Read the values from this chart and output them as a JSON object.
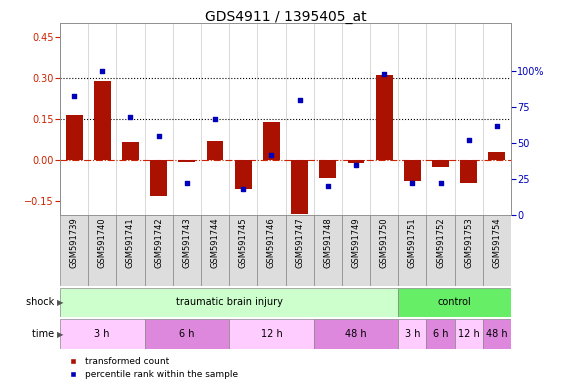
{
  "title": "GDS4911 / 1395405_at",
  "samples": [
    "GSM591739",
    "GSM591740",
    "GSM591741",
    "GSM591742",
    "GSM591743",
    "GSM591744",
    "GSM591745",
    "GSM591746",
    "GSM591747",
    "GSM591748",
    "GSM591749",
    "GSM591750",
    "GSM591751",
    "GSM591752",
    "GSM591753",
    "GSM591754"
  ],
  "red_values": [
    0.165,
    0.29,
    0.065,
    -0.13,
    -0.005,
    0.07,
    -0.105,
    0.14,
    -0.195,
    -0.065,
    -0.01,
    0.31,
    -0.075,
    -0.025,
    -0.085,
    0.03
  ],
  "blue_values": [
    83,
    100,
    68,
    55,
    22,
    67,
    18,
    42,
    80,
    20,
    35,
    98,
    22,
    22,
    52,
    62
  ],
  "ylim_left": [
    -0.2,
    0.5
  ],
  "ylim_right": [
    0,
    133.33
  ],
  "yticks_left": [
    -0.15,
    0.0,
    0.15,
    0.3,
    0.45
  ],
  "yticks_right": [
    0,
    25,
    50,
    75,
    100
  ],
  "hlines": [
    0.15,
    0.3
  ],
  "shock_groups": [
    {
      "label": "traumatic brain injury",
      "start": 0,
      "end": 12,
      "color": "#ccffcc"
    },
    {
      "label": "control",
      "start": 12,
      "end": 16,
      "color": "#66ee66"
    }
  ],
  "time_groups": [
    {
      "label": "3 h",
      "start": 0,
      "end": 3,
      "color": "#ffccff"
    },
    {
      "label": "6 h",
      "start": 3,
      "end": 6,
      "color": "#dd88dd"
    },
    {
      "label": "12 h",
      "start": 6,
      "end": 9,
      "color": "#ffccff"
    },
    {
      "label": "48 h",
      "start": 9,
      "end": 12,
      "color": "#dd88dd"
    },
    {
      "label": "3 h",
      "start": 12,
      "end": 13,
      "color": "#ffccff"
    },
    {
      "label": "6 h",
      "start": 13,
      "end": 14,
      "color": "#dd88dd"
    },
    {
      "label": "12 h",
      "start": 14,
      "end": 15,
      "color": "#ffccff"
    },
    {
      "label": "48 h",
      "start": 15,
      "end": 16,
      "color": "#dd88dd"
    }
  ],
  "sample_bg": "#dddddd",
  "bar_color": "#aa1100",
  "dot_color": "#0000bb",
  "zero_line_color": "#cc2200",
  "bg_color": "#ffffff",
  "axis_color_left": "#cc2200",
  "axis_color_right": "#0000bb",
  "title_fontsize": 10,
  "tick_fontsize": 7,
  "sample_fontsize": 6
}
